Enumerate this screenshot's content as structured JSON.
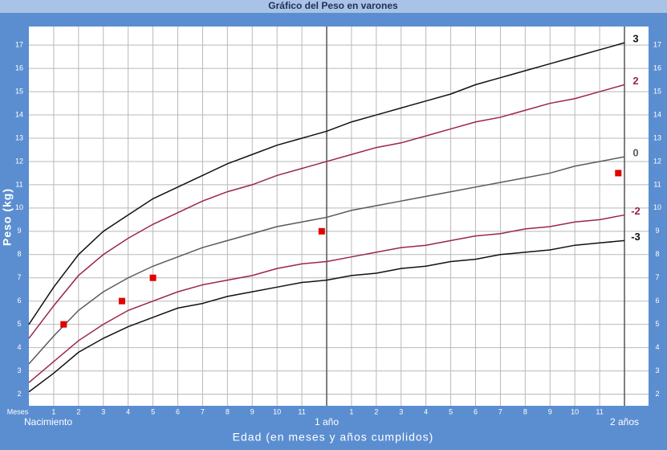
{
  "chart_data": {
    "type": "line",
    "title": "Gráfico del Peso en varones",
    "x_label": "Edad (en meses y años cumplidos)",
    "y_label": "Peso (kg)",
    "x_unit_label": "Meses",
    "x_start_label": "Nacimiento",
    "x": [
      0,
      1,
      2,
      3,
      4,
      5,
      6,
      7,
      8,
      9,
      10,
      11,
      12,
      13,
      14,
      15,
      16,
      17,
      18,
      19,
      20,
      21,
      22,
      23,
      24
    ],
    "xlim": [
      0,
      24
    ],
    "xticks": [
      1,
      2,
      3,
      4,
      5,
      6,
      7,
      8,
      9,
      10,
      11,
      {
        "value": 12,
        "label": "1 año"
      },
      {
        "value": 13,
        "label": "1"
      },
      {
        "value": 14,
        "label": "2"
      },
      {
        "value": 15,
        "label": "3"
      },
      {
        "value": 16,
        "label": "4"
      },
      {
        "value": 17,
        "label": "5"
      },
      {
        "value": 18,
        "label": "6"
      },
      {
        "value": 19,
        "label": "7"
      },
      {
        "value": 20,
        "label": "8"
      },
      {
        "value": 21,
        "label": "9"
      },
      {
        "value": 22,
        "label": "10"
      },
      {
        "value": 23,
        "label": "11"
      },
      {
        "value": 24,
        "label": "2 años"
      }
    ],
    "ylim": [
      1.5,
      17.8
    ],
    "yticks": [
      2,
      3,
      4,
      5,
      6,
      7,
      8,
      9,
      10,
      11,
      12,
      13,
      14,
      15,
      16,
      17
    ],
    "grid": true,
    "series": [
      {
        "name": "3",
        "color": "#111111",
        "values": [
          5.0,
          6.6,
          8.0,
          9.0,
          9.7,
          10.4,
          10.9,
          11.4,
          11.9,
          12.3,
          12.7,
          13.0,
          13.3,
          13.7,
          14.0,
          14.3,
          14.6,
          14.9,
          15.3,
          15.6,
          15.9,
          16.2,
          16.5,
          16.8,
          17.1
        ]
      },
      {
        "name": "2",
        "color": "#9b2744",
        "values": [
          4.4,
          5.8,
          7.1,
          8.0,
          8.7,
          9.3,
          9.8,
          10.3,
          10.7,
          11.0,
          11.4,
          11.7,
          12.0,
          12.3,
          12.6,
          12.8,
          13.1,
          13.4,
          13.7,
          13.9,
          14.2,
          14.5,
          14.7,
          15.0,
          15.3
        ]
      },
      {
        "name": "0",
        "color": "#5a5a5a",
        "values": [
          3.3,
          4.5,
          5.6,
          6.4,
          7.0,
          7.5,
          7.9,
          8.3,
          8.6,
          8.9,
          9.2,
          9.4,
          9.6,
          9.9,
          10.1,
          10.3,
          10.5,
          10.7,
          10.9,
          11.1,
          11.3,
          11.5,
          11.8,
          12.0,
          12.2
        ]
      },
      {
        "name": "-2",
        "color": "#9b2744",
        "values": [
          2.5,
          3.4,
          4.3,
          5.0,
          5.6,
          6.0,
          6.4,
          6.7,
          6.9,
          7.1,
          7.4,
          7.6,
          7.7,
          7.9,
          8.1,
          8.3,
          8.4,
          8.6,
          8.8,
          8.9,
          9.1,
          9.2,
          9.4,
          9.5,
          9.7
        ]
      },
      {
        "name": "-3",
        "color": "#111111",
        "values": [
          2.1,
          2.9,
          3.8,
          4.4,
          4.9,
          5.3,
          5.7,
          5.9,
          6.2,
          6.4,
          6.6,
          6.8,
          6.9,
          7.1,
          7.2,
          7.4,
          7.5,
          7.7,
          7.8,
          8.0,
          8.1,
          8.2,
          8.4,
          8.5,
          8.6
        ]
      }
    ],
    "points": {
      "color": "#e00000",
      "x": [
        1.4,
        3.75,
        5,
        11.8,
        23.75
      ],
      "values": [
        5,
        6,
        7,
        9,
        11.5
      ]
    }
  }
}
